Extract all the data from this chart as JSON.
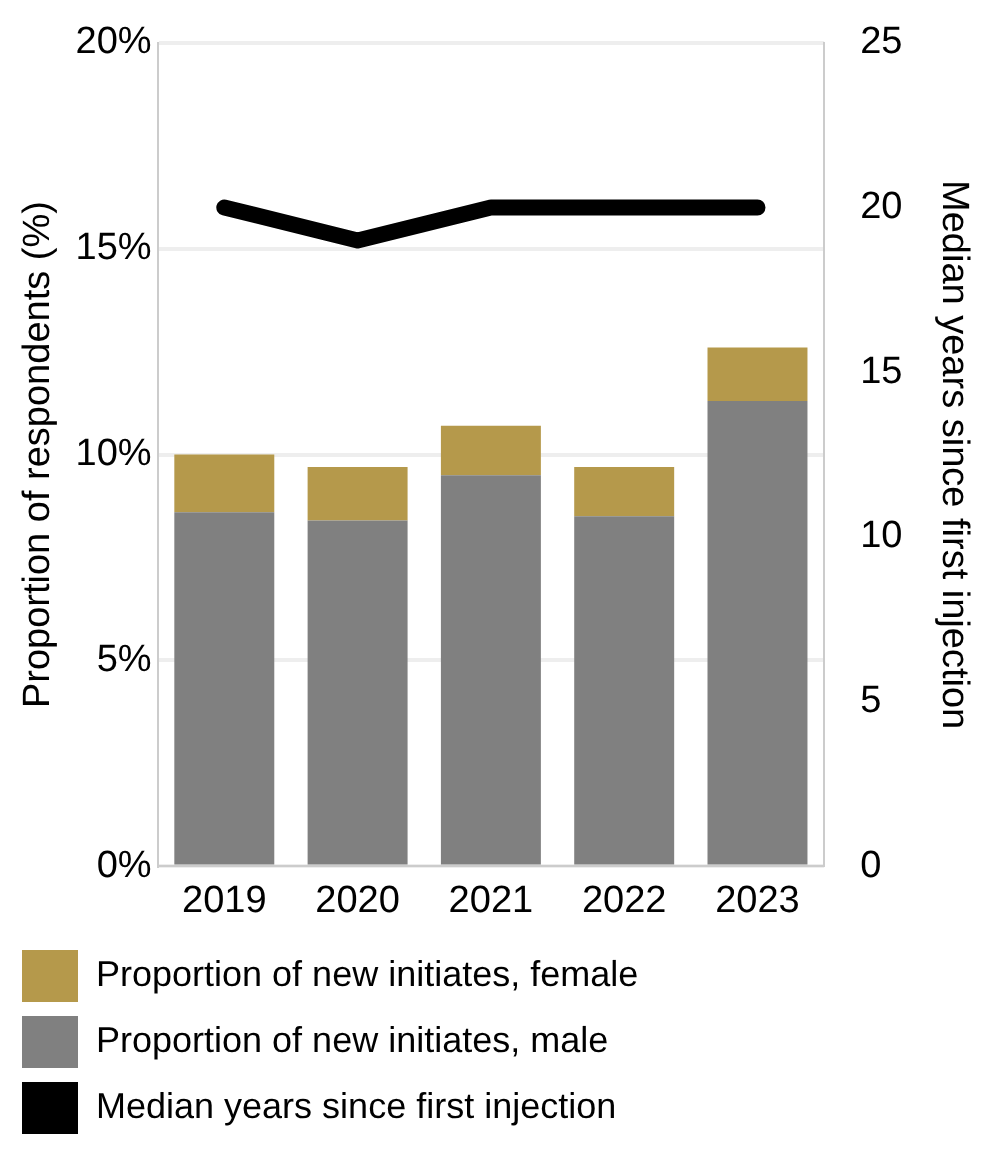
{
  "chart_data": {
    "type": "bar",
    "stacked": true,
    "categories": [
      "2019",
      "2020",
      "2021",
      "2022",
      "2023"
    ],
    "series": [
      {
        "name": "Proportion of new initiates, male",
        "color": "#808080",
        "values": [
          8.6,
          8.4,
          9.5,
          8.5,
          11.3
        ]
      },
      {
        "name": "Proportion of new initiates, female",
        "color": "#b5994b",
        "values": [
          1.4,
          1.3,
          1.2,
          1.2,
          1.3
        ]
      },
      {
        "name": "Median years since first injection",
        "type": "line",
        "axis": "y2",
        "color": "#000000",
        "values": [
          20,
          19,
          20,
          20,
          20
        ]
      }
    ],
    "ylabel": "Proportion of respondents (%)",
    "y2label": "Median years since first injection",
    "ylim": [
      0,
      20
    ],
    "yticks": [
      {
        "value": 0,
        "label": "0%"
      },
      {
        "value": 5,
        "label": "5%"
      },
      {
        "value": 10,
        "label": "10%"
      },
      {
        "value": 15,
        "label": "15%"
      },
      {
        "value": 20,
        "label": "20%"
      }
    ],
    "y2lim": [
      0,
      25
    ],
    "y2ticks": [
      0,
      5,
      10,
      15,
      20,
      25
    ],
    "grid": "y",
    "legend": "bottom",
    "marker": "none",
    "line_style": "solid"
  }
}
